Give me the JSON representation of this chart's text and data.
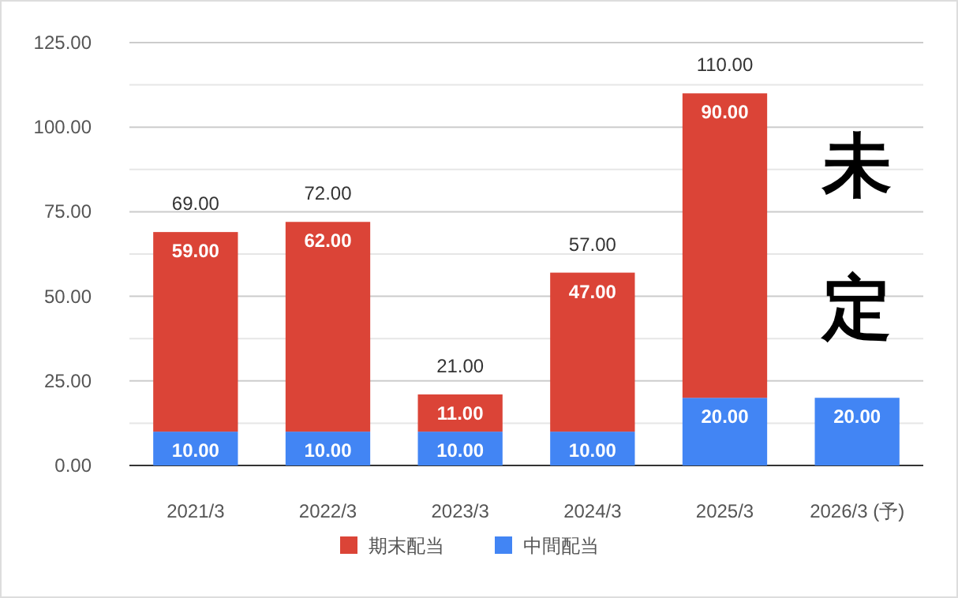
{
  "chart_data": {
    "type": "bar",
    "stacked": true,
    "categories": [
      "2021/3",
      "2022/3",
      "2023/3",
      "2024/3",
      "2025/3",
      "2026/3 (予)"
    ],
    "series": [
      {
        "name": "中間配当",
        "color": "#4285f4",
        "values": [
          10,
          10,
          10,
          10,
          20,
          20
        ],
        "value_labels": [
          "10.00",
          "10.00",
          "10.00",
          "10.00",
          "20.00",
          "20.00"
        ]
      },
      {
        "name": "期末配当",
        "color": "#db4437",
        "values": [
          59,
          62,
          11,
          47,
          90,
          null
        ],
        "value_labels": [
          "59.00",
          "62.00",
          "11.00",
          "47.00",
          "90.00",
          null
        ]
      }
    ],
    "totals": [
      "69.00",
      "72.00",
      "21.00",
      "57.00",
      "110.00",
      null
    ],
    "annotations": [
      "未定"
    ],
    "ylim": [
      0,
      125
    ],
    "yticks": [
      {
        "value": 0,
        "label": "0.00"
      },
      {
        "value": 12.5,
        "label": null
      },
      {
        "value": 25,
        "label": "25.00"
      },
      {
        "value": 37.5,
        "label": null
      },
      {
        "value": 50,
        "label": "50.00"
      },
      {
        "value": 62.5,
        "label": null
      },
      {
        "value": 75,
        "label": "75.00"
      },
      {
        "value": 87.5,
        "label": null
      },
      {
        "value": 100,
        "label": "100.00"
      },
      {
        "value": 112.5,
        "label": null
      },
      {
        "value": 125,
        "label": "125.00"
      }
    ],
    "grid": "y",
    "legend": "bottom"
  }
}
